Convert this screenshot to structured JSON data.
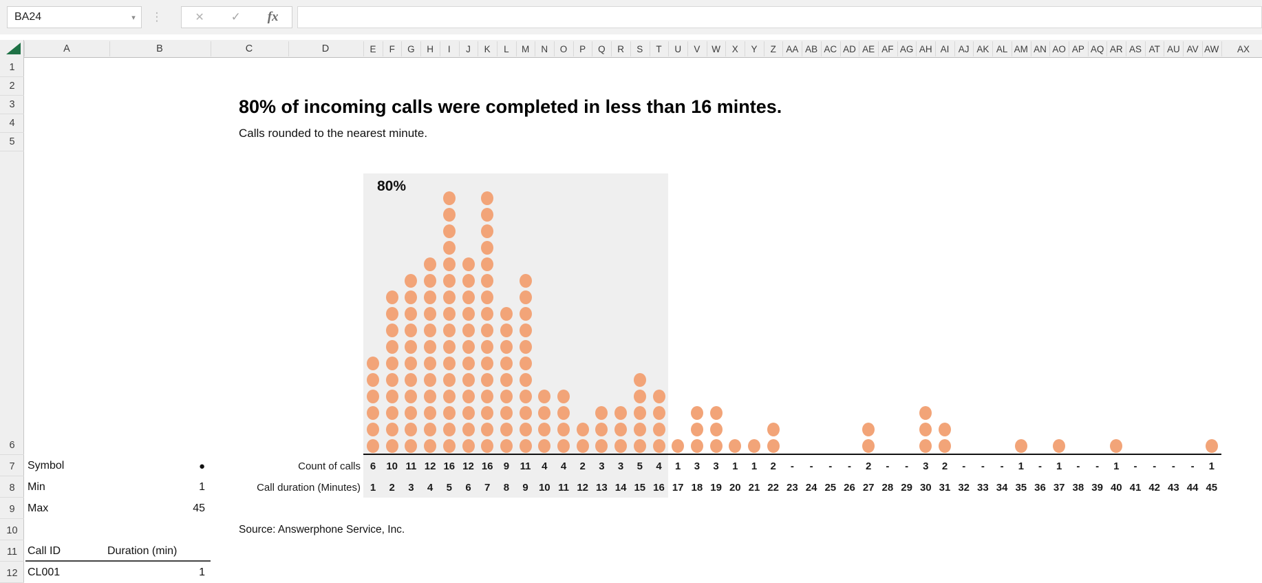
{
  "formula_bar": {
    "name_box": "BA24",
    "fx": "fx",
    "cancel_glyph": "✕",
    "confirm_glyph": "✓",
    "caret_glyph": "▾",
    "drag_glyph": "⋮",
    "formula_value": ""
  },
  "grid": {
    "wide_columns": [
      "A",
      "B",
      "C",
      "D"
    ],
    "narrow_columns": [
      "E",
      "F",
      "G",
      "H",
      "I",
      "J",
      "K",
      "L",
      "M",
      "N",
      "O",
      "P",
      "Q",
      "R",
      "S",
      "T",
      "U",
      "V",
      "W",
      "X",
      "Y",
      "Z",
      "AA",
      "AB",
      "AC",
      "AD",
      "AE",
      "AF",
      "AG",
      "AH",
      "AI",
      "AJ",
      "AK",
      "AL",
      "AM",
      "AN",
      "AO",
      "AP",
      "AQ",
      "AR",
      "AS",
      "AT",
      "AU",
      "AV",
      "AW"
    ],
    "last_column": "AX",
    "rows": [
      "1",
      "2",
      "3",
      "4",
      "5",
      "6",
      "7",
      "8",
      "9",
      "10",
      "11",
      "12"
    ]
  },
  "chart": {
    "title": "80% of incoming calls were completed in less than 16 mintes.",
    "subtitle": "Calls rounded to the nearest minute.",
    "shade_label": "80%",
    "count_label": "Count of calls",
    "duration_label": "Call duration (Minutes)",
    "source": "Source: Answerphone Service, Inc.",
    "dot_color": "#F2A478",
    "shade_color": "#EFEFEF"
  },
  "chart_data": {
    "type": "scatter",
    "subtype": "dot-plot",
    "title": "80% of incoming calls were completed in less than 16 mintes.",
    "xlabel": "Call duration (Minutes)",
    "ylabel": "Count of calls",
    "x": [
      1,
      2,
      3,
      4,
      5,
      6,
      7,
      8,
      9,
      10,
      11,
      12,
      13,
      14,
      15,
      16,
      17,
      18,
      19,
      20,
      21,
      22,
      23,
      24,
      25,
      26,
      27,
      28,
      29,
      30,
      31,
      32,
      33,
      34,
      35,
      36,
      37,
      38,
      39,
      40,
      41,
      42,
      43,
      44,
      45
    ],
    "counts": [
      6,
      10,
      11,
      12,
      16,
      12,
      16,
      9,
      11,
      4,
      4,
      2,
      3,
      3,
      5,
      4,
      1,
      3,
      3,
      1,
      1,
      2,
      0,
      0,
      0,
      0,
      2,
      0,
      0,
      3,
      2,
      0,
      0,
      0,
      1,
      0,
      1,
      0,
      0,
      1,
      0,
      0,
      0,
      0,
      1
    ],
    "count_labels": [
      "6",
      "10",
      "11",
      "12",
      "16",
      "12",
      "16",
      "9",
      "11",
      "4",
      "4",
      "2",
      "3",
      "3",
      "5",
      "4",
      "1",
      "3",
      "3",
      "1",
      "1",
      "2",
      "-",
      "-",
      "-",
      "-",
      "2",
      "-",
      "-",
      "3",
      "2",
      "-",
      "-",
      "-",
      "1",
      "-",
      "1",
      "-",
      "-",
      "1",
      "-",
      "-",
      "-",
      "-",
      "1"
    ],
    "shaded_region_x": [
      1,
      16
    ],
    "shaded_region_label": "80%",
    "ylim": [
      0,
      16
    ],
    "grid": false,
    "legend": false
  },
  "side": {
    "symbol_label": "Symbol",
    "symbol": "●",
    "min_label": "Min",
    "min_value": "1",
    "max_label": "Max",
    "max_value": "45",
    "call_id_header": "Call ID",
    "duration_header": "Duration (min)",
    "call_id_value": "CL001",
    "duration_value": "1"
  }
}
